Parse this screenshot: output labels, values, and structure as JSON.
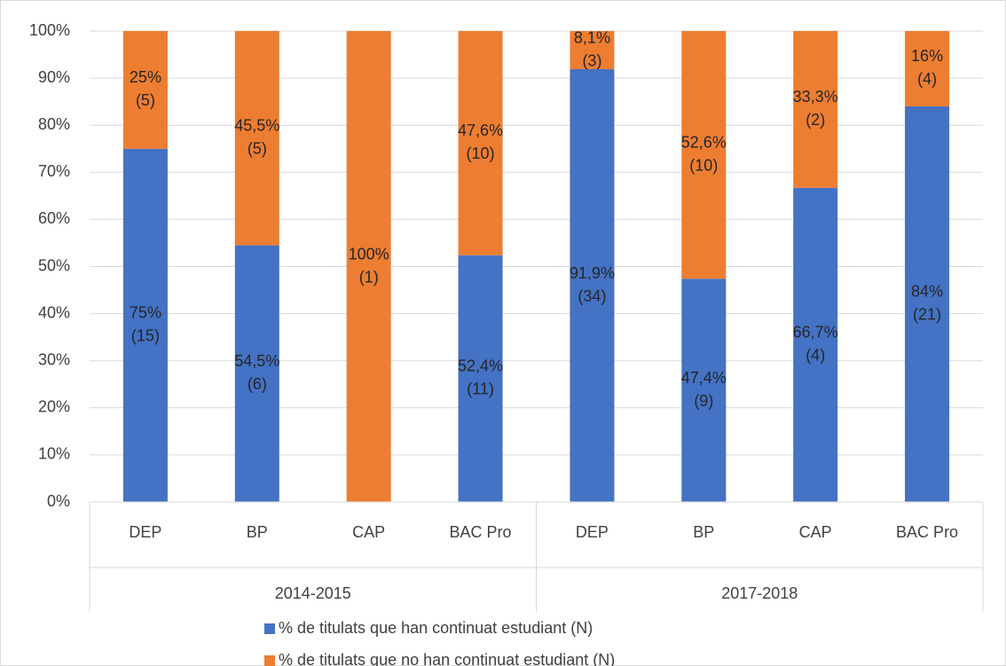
{
  "chart_data": {
    "type": "stacked_bar",
    "groups": [
      {
        "name": "2014-2015",
        "categories": [
          "DEP",
          "BP",
          "CAP",
          "BAC Pro"
        ]
      },
      {
        "name": "2017-2018",
        "categories": [
          "DEP",
          "BP",
          "CAP",
          "BAC Pro"
        ]
      }
    ],
    "series": [
      {
        "name": "% de titulats que han continuat estudiant (N)",
        "color": "#4472c4",
        "values": [
          75,
          54.5,
          0,
          52.4,
          91.9,
          47.4,
          66.7,
          84
        ],
        "value_labels": [
          "75%",
          "54,5%",
          null,
          "52,4%",
          "91,9%",
          "47,4%",
          "66,7%",
          "84%"
        ],
        "count_labels": [
          "(15)",
          "(6)",
          null,
          "(11)",
          "(34)",
          "(9)",
          "(4)",
          "(21)"
        ]
      },
      {
        "name": "% de titulats que no han continuat estudiant (N)",
        "color": "#ed7d31",
        "values": [
          25,
          45.5,
          100,
          47.6,
          8.1,
          52.6,
          33.3,
          16
        ],
        "value_labels": [
          "25%",
          "45,5%",
          "100%",
          "47,6%",
          "8,1%",
          "52,6%",
          "33,3%",
          "16%"
        ],
        "count_labels": [
          "(5)",
          "(5)",
          "(1)",
          "(10)",
          "(3)",
          "(10)",
          "(2)",
          "(4)"
        ]
      }
    ],
    "ylim": [
      0,
      100
    ],
    "yticks": [
      {
        "value": 0,
        "label": "0%"
      },
      {
        "value": 10,
        "label": "10%"
      },
      {
        "value": 20,
        "label": "20%"
      },
      {
        "value": 30,
        "label": "30%"
      },
      {
        "value": 40,
        "label": "40%"
      },
      {
        "value": 50,
        "label": "50%"
      },
      {
        "value": 60,
        "label": "60%"
      },
      {
        "value": 70,
        "label": "70%"
      },
      {
        "value": 80,
        "label": "80%"
      },
      {
        "value": 90,
        "label": "90%"
      },
      {
        "value": 100,
        "label": "100%"
      }
    ],
    "grid": true
  }
}
